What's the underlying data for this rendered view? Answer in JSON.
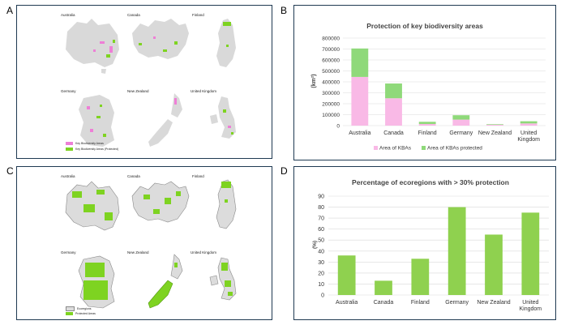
{
  "panels": {
    "a": {
      "letter": "A"
    },
    "b": {
      "letter": "B"
    },
    "c": {
      "letter": "C"
    },
    "d": {
      "letter": "D"
    }
  },
  "map_a": {
    "countries": [
      "Australia",
      "Canada",
      "Finland",
      "Germany",
      "New Zealand",
      "United Kingdom"
    ],
    "legend": [
      {
        "label": "Key Biodiversity Areas",
        "color": "#ee7fd6"
      },
      {
        "label": "Key Biodiversity Areas (Protected)",
        "color": "#7ed321"
      }
    ]
  },
  "map_c": {
    "countries": [
      "Australia",
      "Canada",
      "Finland",
      "Germany",
      "New Zealand",
      "United Kingdom"
    ],
    "legend": [
      {
        "label": "Ecoregions",
        "color": "#dcdcdc"
      },
      {
        "label": "Protected Areas",
        "color": "#7ed321"
      }
    ]
  },
  "chart_data": [
    {
      "type": "bar",
      "stacked": true,
      "title": "Protection of key biodiversity areas",
      "ylabel": "(km²)",
      "categories": [
        "Australia",
        "Canada",
        "Finland",
        "Germany",
        "New Zealand",
        "United Kingdom"
      ],
      "series": [
        {
          "name": "Area of KBAs",
          "color": "#f9b9e6",
          "values": [
            445000,
            250000,
            15000,
            55000,
            8000,
            20000
          ]
        },
        {
          "name": "Area of KBAs protected",
          "color": "#8fd97a",
          "values": [
            260000,
            135000,
            20000,
            40000,
            5000,
            20000
          ]
        }
      ],
      "ylim": [
        0,
        800000
      ],
      "yticks": [
        0,
        100000,
        200000,
        300000,
        400000,
        500000,
        600000,
        700000,
        800000
      ],
      "grid": true,
      "legend_position": "bottom"
    },
    {
      "type": "bar",
      "title": "Percentage of ecoregions with > 30% protection",
      "ylabel": "(%)",
      "categories": [
        "Australia",
        "Canada",
        "Finland",
        "Germany",
        "New Zealand",
        "United Kingdom"
      ],
      "values": [
        36,
        13,
        33,
        80,
        55,
        75
      ],
      "color": "#8fd14f",
      "ylim": [
        0,
        90
      ],
      "yticks": [
        0,
        10,
        20,
        30,
        40,
        50,
        60,
        70,
        80,
        90
      ],
      "grid": true
    }
  ]
}
